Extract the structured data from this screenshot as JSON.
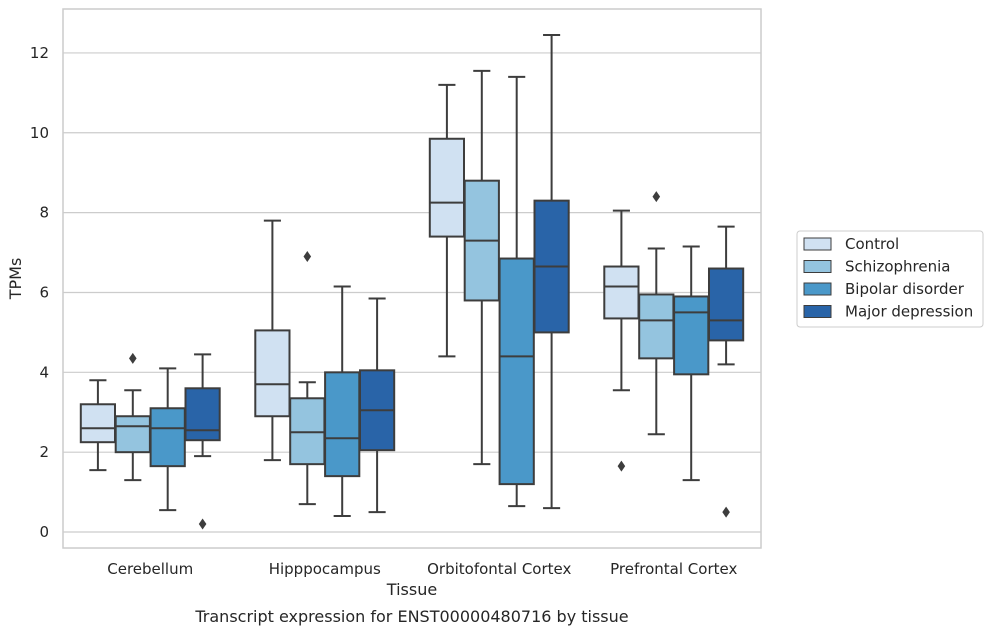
{
  "chart_data": {
    "type": "box",
    "title": "",
    "caption": "Transcript expression for ENST00000480716 by tissue",
    "xlabel": "Tissue",
    "ylabel": "TPMs",
    "ylim": [
      -0.4,
      13.1
    ],
    "yticks": [
      0,
      2,
      4,
      6,
      8,
      10,
      12
    ],
    "grid": "horizontal",
    "legend_position": "right",
    "categories": [
      "Cerebellum",
      "Hipppocampus",
      "Orbitofontal Cortex",
      "Prefrontal Cortex"
    ],
    "series": [
      {
        "name": "Control",
        "color": "#d0e1f2",
        "boxes": [
          {
            "whislo": 1.55,
            "q1": 2.25,
            "med": 2.6,
            "q3": 3.2,
            "whishi": 3.8,
            "fliers": []
          },
          {
            "whislo": 1.8,
            "q1": 2.9,
            "med": 3.7,
            "q3": 5.05,
            "whishi": 7.8,
            "fliers": []
          },
          {
            "whislo": 4.4,
            "q1": 7.4,
            "med": 8.25,
            "q3": 9.85,
            "whishi": 11.2,
            "fliers": []
          },
          {
            "whislo": 3.55,
            "q1": 5.35,
            "med": 6.15,
            "q3": 6.65,
            "whishi": 8.05,
            "fliers": [
              1.65
            ]
          }
        ]
      },
      {
        "name": "Schizophrenia",
        "color": "#94c4df",
        "boxes": [
          {
            "whislo": 1.3,
            "q1": 2.0,
            "med": 2.65,
            "q3": 2.9,
            "whishi": 3.55,
            "fliers": [
              4.35
            ]
          },
          {
            "whislo": 0.7,
            "q1": 1.7,
            "med": 2.5,
            "q3": 3.35,
            "whishi": 3.75,
            "fliers": [
              6.9
            ]
          },
          {
            "whislo": 1.7,
            "q1": 5.8,
            "med": 7.3,
            "q3": 8.8,
            "whishi": 11.55,
            "fliers": []
          },
          {
            "whislo": 2.45,
            "q1": 4.35,
            "med": 5.3,
            "q3": 5.95,
            "whishi": 7.1,
            "fliers": [
              8.4
            ]
          }
        ]
      },
      {
        "name": "Bipolar disorder",
        "color": "#4a98c9",
        "boxes": [
          {
            "whislo": 0.55,
            "q1": 1.65,
            "med": 2.6,
            "q3": 3.1,
            "whishi": 4.1,
            "fliers": []
          },
          {
            "whislo": 0.4,
            "q1": 1.4,
            "med": 2.35,
            "q3": 4.0,
            "whishi": 6.15,
            "fliers": []
          },
          {
            "whislo": 0.65,
            "q1": 1.2,
            "med": 4.4,
            "q3": 6.85,
            "whishi": 11.4,
            "fliers": []
          },
          {
            "whislo": 1.3,
            "q1": 3.95,
            "med": 5.5,
            "q3": 5.9,
            "whishi": 7.15,
            "fliers": []
          }
        ]
      },
      {
        "name": "Major depression",
        "color": "#2964a8",
        "boxes": [
          {
            "whislo": 1.9,
            "q1": 2.3,
            "med": 2.55,
            "q3": 3.6,
            "whishi": 4.45,
            "fliers": [
              0.2
            ]
          },
          {
            "whislo": 0.5,
            "q1": 2.05,
            "med": 3.05,
            "q3": 4.05,
            "whishi": 5.85,
            "fliers": []
          },
          {
            "whislo": 0.6,
            "q1": 5.0,
            "med": 6.65,
            "q3": 8.3,
            "whishi": 12.45,
            "fliers": []
          },
          {
            "whislo": 4.2,
            "q1": 4.8,
            "med": 5.3,
            "q3": 6.6,
            "whishi": 7.65,
            "fliers": [
              0.5
            ]
          }
        ]
      }
    ]
  }
}
